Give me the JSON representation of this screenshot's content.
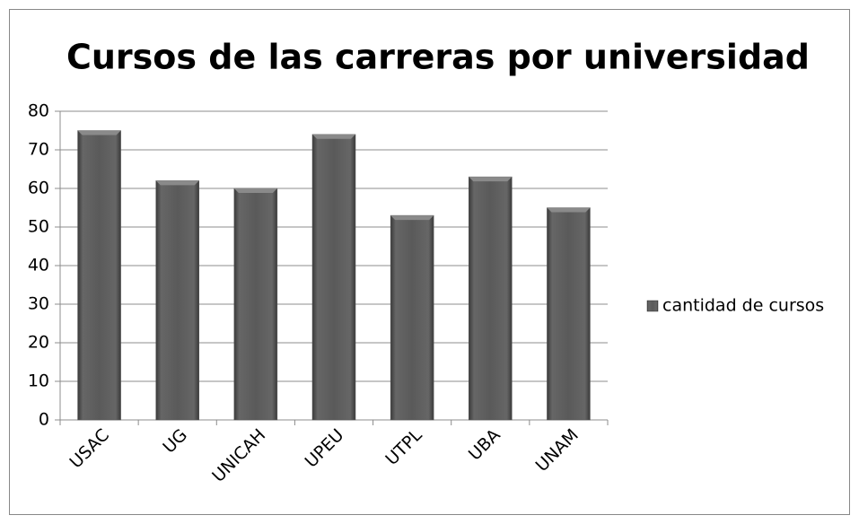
{
  "chart_data": {
    "type": "bar",
    "title": "Cursos de las carreras por universidad",
    "categories": [
      "USAC",
      "UG",
      "UNICAH",
      "UPEU",
      "UTPL",
      "UBA",
      "UNAM"
    ],
    "series": [
      {
        "name": "cantidad de cursos",
        "color": "#555555",
        "values": [
          75,
          62,
          60,
          74,
          53,
          63,
          55
        ]
      }
    ],
    "ylim": [
      0,
      80
    ],
    "yticks": [
      0,
      10,
      20,
      30,
      40,
      50,
      60,
      70,
      80
    ],
    "grid": true,
    "legend": "right"
  }
}
